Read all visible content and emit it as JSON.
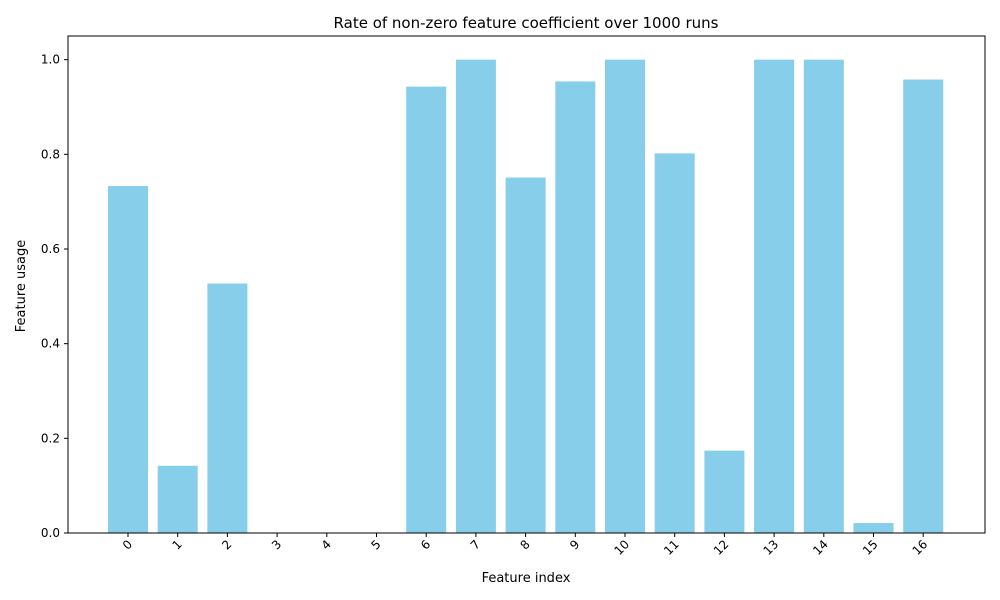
{
  "chart_data": {
    "type": "bar",
    "title": "Rate of non-zero feature coefficient over 1000 runs",
    "xlabel": "Feature index",
    "ylabel": "Feature usage",
    "categories": [
      "0",
      "1",
      "2",
      "3",
      "4",
      "5",
      "6",
      "7",
      "8",
      "9",
      "10",
      "11",
      "12",
      "13",
      "14",
      "15",
      "16"
    ],
    "values": [
      0.733,
      0.142,
      0.527,
      0.0,
      0.0,
      0.0,
      0.943,
      1.0,
      0.751,
      0.954,
      1.0,
      0.802,
      0.174,
      1.0,
      1.0,
      0.021,
      0.958
    ],
    "ylim": [
      0,
      1.05
    ],
    "yticks": [
      "0.0",
      "0.2",
      "0.4",
      "0.6",
      "0.8",
      "1.0"
    ],
    "bar_color": "#87CEEB",
    "grid": false,
    "legend": "none",
    "xtick_rotation": "45"
  }
}
